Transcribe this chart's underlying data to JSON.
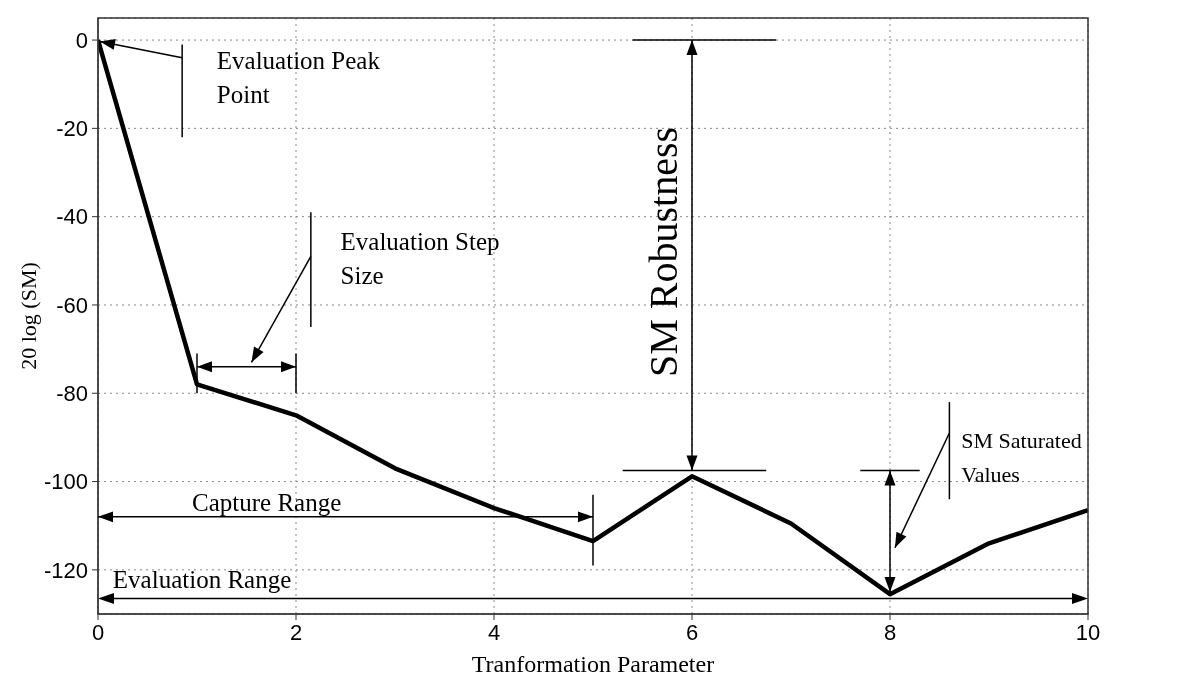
{
  "chart_data": {
    "type": "line",
    "xlabel": "Tranformation Parameter",
    "ylabel": "20 log (SM)",
    "x": [
      0,
      1,
      2,
      3,
      4,
      5,
      6,
      7,
      8,
      9,
      10
    ],
    "series": [
      {
        "color": "#000000",
        "values": [
          0,
          -78,
          -85,
          -97,
          -106,
          -113.5,
          -98.8,
          -109.5,
          -125.5,
          -114,
          -106.5
        ]
      }
    ],
    "xlim": [
      0,
      10
    ],
    "xticks": [
      0,
      2,
      4,
      6,
      8,
      10
    ],
    "ylim": [
      -130,
      5
    ],
    "yticks": [
      0,
      -20,
      -40,
      -60,
      -80,
      -100,
      -120
    ],
    "grid": true,
    "marker": "none",
    "line_style": "solid",
    "annotations": [
      "Evaluation Peak Point",
      "Evaluation Step Size",
      "SM Robustness",
      "SM Saturated Values",
      "Capture Range",
      "Evaluation Range"
    ]
  }
}
